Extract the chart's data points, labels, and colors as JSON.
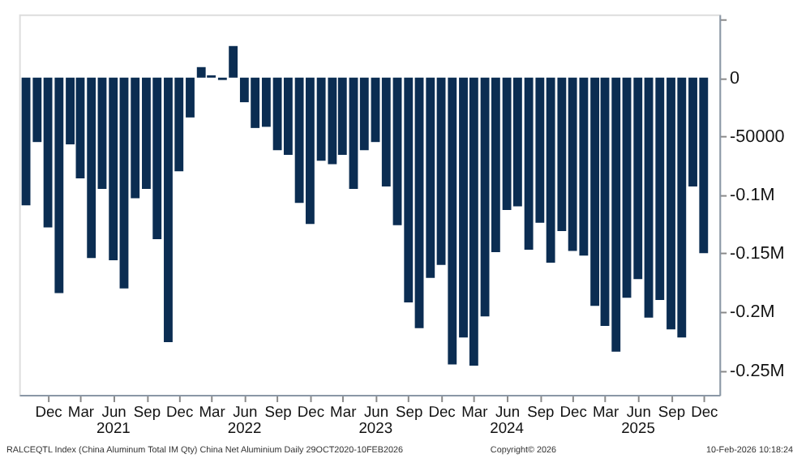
{
  "chart_data": {
    "type": "bar",
    "x": [
      "2020-10",
      "2020-11",
      "2020-12",
      "2021-01",
      "2021-02",
      "2021-03",
      "2021-04",
      "2021-05",
      "2021-06",
      "2021-07",
      "2021-08",
      "2021-09",
      "2021-10",
      "2021-11",
      "2021-12",
      "2022-01",
      "2022-02",
      "2022-03",
      "2022-04",
      "2022-05",
      "2022-06",
      "2022-07",
      "2022-08",
      "2022-09",
      "2022-10",
      "2022-11",
      "2022-12",
      "2023-01",
      "2023-02",
      "2023-03",
      "2023-04",
      "2023-05",
      "2023-06",
      "2023-07",
      "2023-08",
      "2023-09",
      "2023-10",
      "2023-11",
      "2023-12",
      "2024-01",
      "2024-02",
      "2024-03",
      "2024-04",
      "2024-05",
      "2024-06",
      "2024-07",
      "2024-08",
      "2024-09",
      "2024-10",
      "2024-11",
      "2024-12",
      "2025-01",
      "2025-02",
      "2025-03",
      "2025-04",
      "2025-05",
      "2025-06",
      "2025-07",
      "2025-08",
      "2025-09",
      "2025-10",
      "2025-11",
      "2025-12"
    ],
    "values": [
      -109000,
      -55000,
      -128000,
      -184000,
      -57000,
      -86000,
      -154000,
      -95000,
      -156000,
      -180000,
      -103000,
      -95000,
      -138000,
      -226000,
      -80000,
      -34000,
      9000,
      2000,
      -2000,
      27000,
      -21000,
      -43000,
      -42000,
      -62000,
      -66000,
      -107000,
      -125000,
      -71000,
      -74000,
      -66000,
      -95000,
      -62000,
      -55000,
      -93000,
      -126000,
      -192000,
      -214000,
      -171000,
      -160000,
      -245000,
      -222000,
      -246000,
      -204000,
      -149000,
      -113000,
      -110000,
      -147000,
      -124000,
      -158000,
      -131000,
      -148000,
      -152000,
      -195000,
      -212000,
      -234000,
      -188000,
      -172000,
      -205000,
      -190000,
      -215000,
      -222000,
      -93000,
      -150000
    ],
    "color": "#0b2d52",
    "xlim": [
      "2020-09-12",
      "2026-01-14"
    ],
    "xticks": [
      {
        "value": "2020-12",
        "label": "Dec"
      },
      {
        "value": "2021-03",
        "label": "Mar"
      },
      {
        "value": "2021-06",
        "label": "Jun"
      },
      {
        "value": "2021-09",
        "label": "Sep"
      },
      {
        "value": "2021-12",
        "label": "Dec"
      },
      {
        "value": "2022-03",
        "label": "Mar"
      },
      {
        "value": "2022-06",
        "label": "Jun"
      },
      {
        "value": "2022-09",
        "label": "Sep"
      },
      {
        "value": "2022-12",
        "label": "Dec"
      },
      {
        "value": "2023-03",
        "label": "Mar"
      },
      {
        "value": "2023-06",
        "label": "Jun"
      },
      {
        "value": "2023-09",
        "label": "Sep"
      },
      {
        "value": "2023-12",
        "label": "Dec"
      },
      {
        "value": "2024-03",
        "label": "Mar"
      },
      {
        "value": "2024-06",
        "label": "Jun"
      },
      {
        "value": "2024-09",
        "label": "Sep"
      },
      {
        "value": "2024-12",
        "label": "Dec"
      },
      {
        "value": "2025-03",
        "label": "Mar"
      },
      {
        "value": "2025-06",
        "label": "Jun"
      },
      {
        "value": "2025-09",
        "label": "Sep"
      },
      {
        "value": "2025-12",
        "label": "Dec"
      }
    ],
    "ylim": [
      -271000,
      54000
    ],
    "yticks": [
      {
        "value": 50000,
        "label": null
      },
      0,
      -50000,
      {
        "value": -100000,
        "label": "-0.1M"
      },
      {
        "value": -150000,
        "label": "-0.15M"
      },
      {
        "value": -200000,
        "label": "-0.2M"
      },
      {
        "value": -250000,
        "label": "-0.25M"
      }
    ],
    "grid": false,
    "annotations": [
      "2021",
      "2022",
      "2023",
      "2024",
      "2025",
      "RALCEQTL Index (China Aluminum Total IM Qty) China Net Aluminium Daily 29OCT2020-10FEB2026",
      "Copyright© 2026",
      "10-Feb-2026 10:18:24"
    ]
  }
}
